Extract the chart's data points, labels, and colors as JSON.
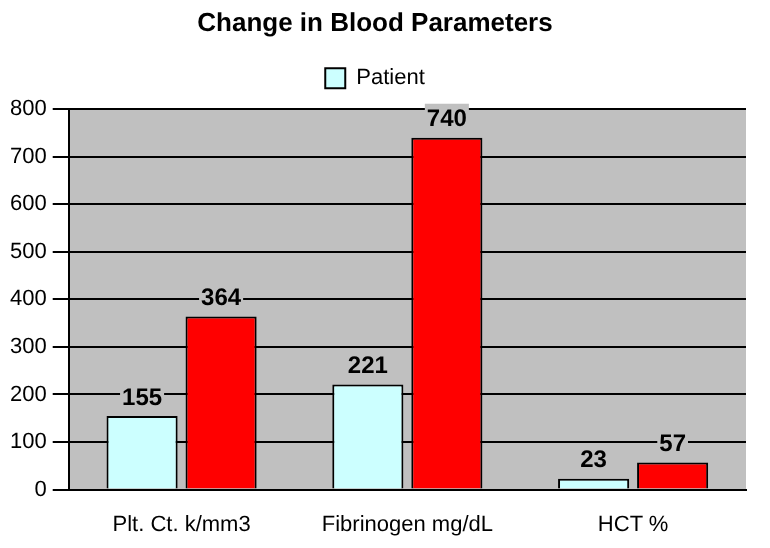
{
  "chart_data": {
    "type": "bar",
    "title": "Change in Blood Parameters",
    "categories": [
      "Plt. Ct. k/mm3",
      "Fibrinogen mg/dL",
      "HCT %"
    ],
    "series": [
      {
        "name": "Patient",
        "color": "#ccffff",
        "values": [
          155,
          221,
          23
        ]
      },
      {
        "color": "#ff0000",
        "values": [
          364,
          740,
          57
        ]
      }
    ],
    "ylim": [
      0,
      800
    ],
    "yticks": [
      0,
      100,
      200,
      300,
      400,
      500,
      600,
      700,
      800
    ],
    "grid": "y",
    "legend": "top",
    "data_labels": true
  }
}
